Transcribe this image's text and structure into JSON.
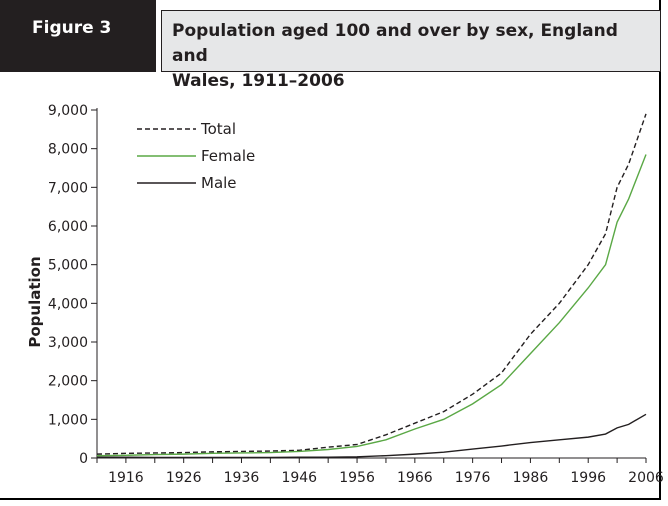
{
  "figure_label": "Figure 3",
  "title_line1": "Population aged 100 and over by sex, England and",
  "title_line2": "Wales, 1911–2006",
  "chart_data": {
    "type": "line",
    "ylabel": "Population",
    "xlabel": "",
    "ylim": [
      0,
      9000
    ],
    "yticks": [
      0,
      1000,
      2000,
      3000,
      4000,
      5000,
      6000,
      7000,
      8000,
      9000
    ],
    "ytick_labels": [
      "0",
      "1,000",
      "2,000",
      "3,000",
      "4,000",
      "5,000",
      "6,000",
      "7,000",
      "8,000",
      "9,000"
    ],
    "xlim": [
      1911,
      2006
    ],
    "xtick_labels": [
      "1916",
      "1926",
      "1936",
      "1946",
      "1956",
      "1966",
      "1976",
      "1986",
      "1996",
      "2006"
    ],
    "grid": false,
    "legend_position": "top-left",
    "series": [
      {
        "name": "Total",
        "color": "#231f20",
        "dash": "5,3",
        "x": [
          1911,
          1916,
          1921,
          1926,
          1931,
          1936,
          1941,
          1946,
          1951,
          1956,
          1961,
          1966,
          1971,
          1976,
          1981,
          1986,
          1991,
          1996,
          1999,
          2001,
          2003,
          2006
        ],
        "values": [
          100,
          120,
          130,
          140,
          160,
          170,
          180,
          200,
          280,
          350,
          600,
          900,
          1200,
          1650,
          2200,
          3200,
          4000,
          5000,
          5800,
          7000,
          7600,
          8900
        ]
      },
      {
        "name": "Female",
        "color": "#5aa845",
        "dash": "",
        "x": [
          1911,
          1916,
          1921,
          1926,
          1931,
          1936,
          1941,
          1946,
          1951,
          1956,
          1961,
          1966,
          1971,
          1976,
          1981,
          1986,
          1991,
          1996,
          1999,
          2001,
          2003,
          2006
        ],
        "values": [
          60,
          70,
          90,
          100,
          120,
          130,
          140,
          170,
          220,
          300,
          470,
          750,
          1000,
          1400,
          1900,
          2700,
          3500,
          4400,
          5000,
          6100,
          6700,
          7850
        ]
      },
      {
        "name": "Male",
        "color": "#231f20",
        "dash": "",
        "x": [
          1911,
          1916,
          1921,
          1926,
          1931,
          1936,
          1941,
          1946,
          1951,
          1956,
          1961,
          1966,
          1971,
          1976,
          1981,
          1986,
          1991,
          1996,
          1999,
          2001,
          2003,
          2006
        ],
        "values": [
          20,
          20,
          15,
          15,
          15,
          15,
          15,
          20,
          20,
          30,
          60,
          100,
          150,
          230,
          310,
          400,
          470,
          540,
          620,
          780,
          870,
          1130
        ]
      }
    ]
  }
}
